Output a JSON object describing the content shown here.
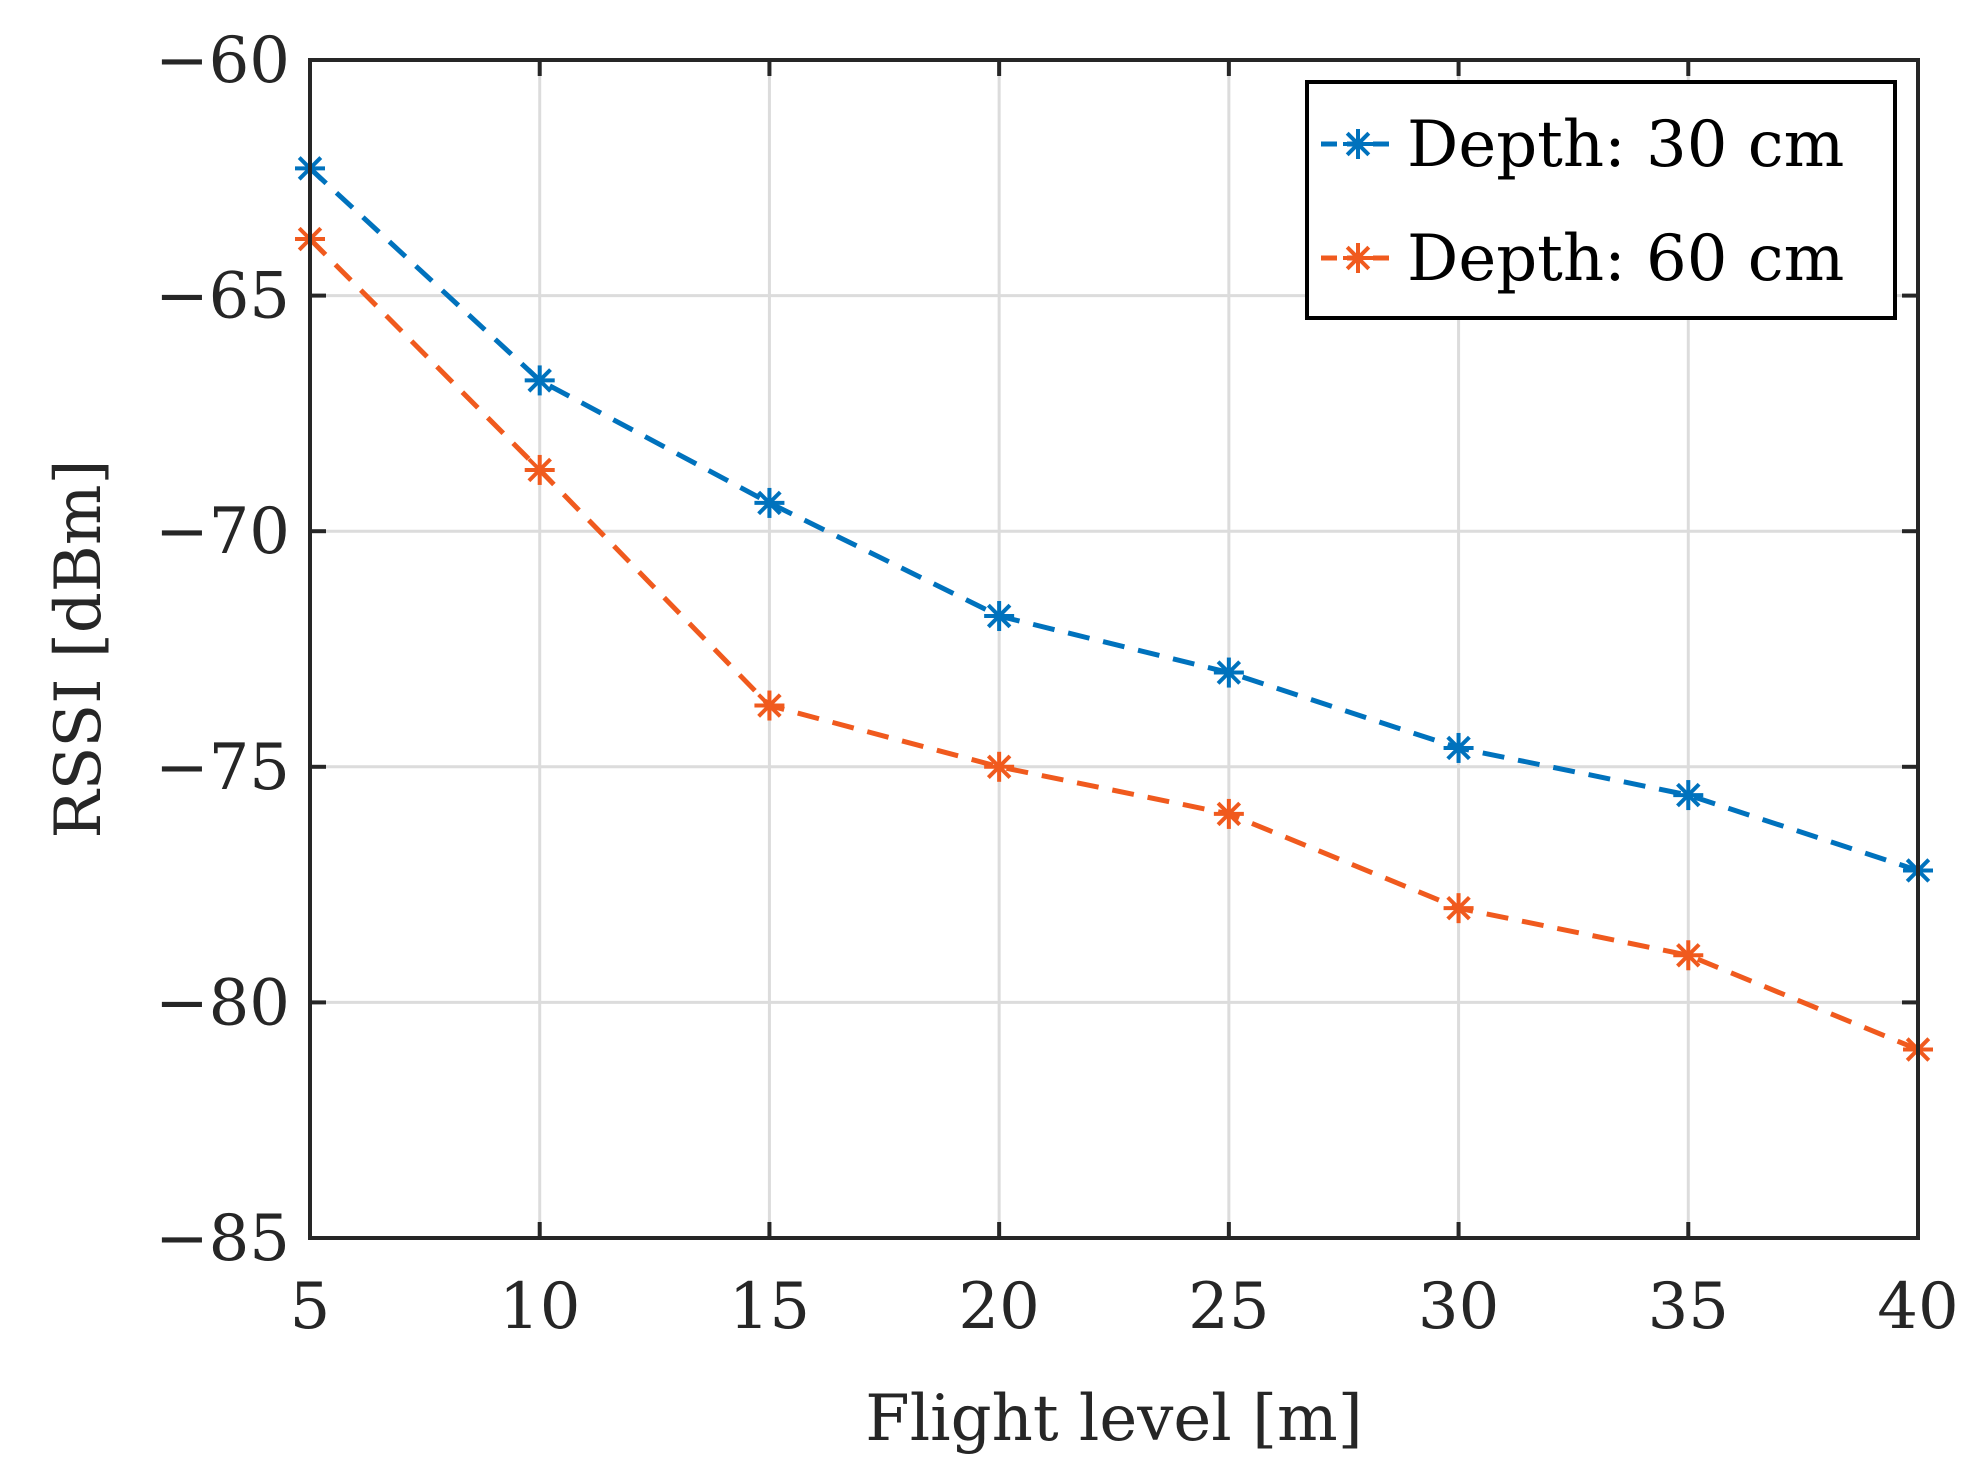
{
  "chart_data": {
    "type": "line",
    "title": "",
    "xlabel": "Flight level [m]",
    "ylabel": "RSSI [dBm]",
    "xlim": [
      5,
      40
    ],
    "ylim": [
      -85,
      -60
    ],
    "xticks": [
      5,
      10,
      15,
      20,
      25,
      30,
      35,
      40
    ],
    "yticks": [
      -85,
      -80,
      -75,
      -70,
      -65,
      -60
    ],
    "xtick_labels": [
      "5",
      "10",
      "15",
      "20",
      "25",
      "30",
      "35",
      "40"
    ],
    "ytick_labels": [
      "−85",
      "−80",
      "−75",
      "−70",
      "−65",
      "−60"
    ],
    "grid": true,
    "legend_position": "top-right",
    "x": [
      5,
      10,
      15,
      20,
      25,
      30,
      35,
      40
    ],
    "series": [
      {
        "name": "Depth: 30 cm",
        "color": "#0072BD",
        "line_style": "dashed",
        "marker": "asterisk",
        "values": [
          -62.3,
          -66.8,
          -69.4,
          -71.8,
          -73.0,
          -74.6,
          -75.6,
          -77.2
        ]
      },
      {
        "name": "Depth: 60 cm",
        "color": "#F05A1E",
        "line_style": "dashed",
        "marker": "asterisk",
        "values": [
          -63.8,
          -68.7,
          -73.7,
          -75.0,
          -76.0,
          -78.0,
          -79.0,
          -81.0
        ]
      }
    ]
  }
}
